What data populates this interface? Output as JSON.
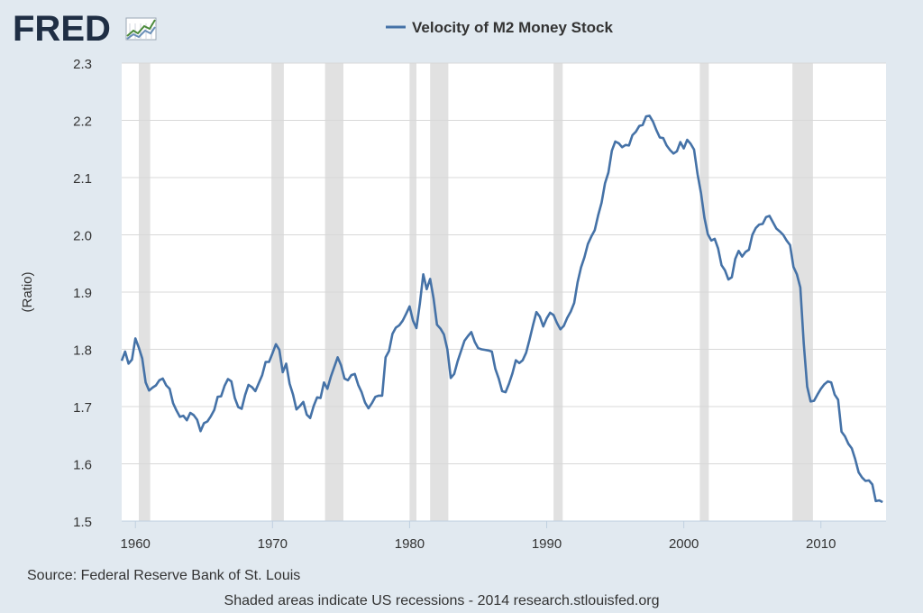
{
  "logo": {
    "text": "FRED",
    "icon": "fred-chart-icon"
  },
  "colors": {
    "background": "#e1e9f0",
    "plot_background": "#ffffff",
    "series": "#4572a7",
    "recession": "#e1e1e1",
    "grid": "#d8d8d8",
    "logo": "#1f2e44"
  },
  "chart_data": {
    "type": "line",
    "title": "Velocity of M2 Money Stock",
    "xlabel": "",
    "ylabel": "(Ratio)",
    "xlim": [
      1959.0,
      2014.75
    ],
    "ylim": [
      1.5,
      2.3
    ],
    "x_ticks": [
      {
        "value": 1960,
        "label": "1960"
      },
      {
        "value": 1970,
        "label": "1970"
      },
      {
        "value": 1980,
        "label": "1980"
      },
      {
        "value": 1990,
        "label": "1990"
      },
      {
        "value": 2000,
        "label": "2000"
      },
      {
        "value": 2010,
        "label": "2010"
      }
    ],
    "y_ticks": [
      {
        "value": 1.5,
        "label": "1.5"
      },
      {
        "value": 1.6,
        "label": "1.6"
      },
      {
        "value": 1.7,
        "label": "1.7"
      },
      {
        "value": 1.8,
        "label": "1.8"
      },
      {
        "value": 1.9,
        "label": "1.9"
      },
      {
        "value": 2.0,
        "label": "2.0"
      },
      {
        "value": 2.1,
        "label": "2.1"
      },
      {
        "value": 2.2,
        "label": "2.2"
      },
      {
        "value": 2.3,
        "label": "2.3"
      }
    ],
    "grid": "horizontal",
    "legend": "top-center",
    "recessions": [
      [
        1960.25,
        1961.08
      ],
      [
        1969.92,
        1970.83
      ],
      [
        1973.83,
        1975.17
      ],
      [
        1980.0,
        1980.5
      ],
      [
        1981.5,
        1982.83
      ],
      [
        1990.5,
        1991.17
      ],
      [
        2001.17,
        2001.83
      ],
      [
        2007.92,
        2009.42
      ]
    ],
    "series": [
      {
        "name": "Velocity of M2 Money Stock",
        "points": [
          [
            1959.0,
            1.78
          ],
          [
            1959.25,
            1.796
          ],
          [
            1959.5,
            1.775
          ],
          [
            1959.75,
            1.782
          ],
          [
            1960.0,
            1.819
          ],
          [
            1960.25,
            1.803
          ],
          [
            1960.5,
            1.784
          ],
          [
            1960.75,
            1.742
          ],
          [
            1961.0,
            1.728
          ],
          [
            1961.25,
            1.733
          ],
          [
            1961.5,
            1.737
          ],
          [
            1961.75,
            1.746
          ],
          [
            1962.0,
            1.749
          ],
          [
            1962.25,
            1.737
          ],
          [
            1962.5,
            1.731
          ],
          [
            1962.75,
            1.706
          ],
          [
            1963.0,
            1.693
          ],
          [
            1963.25,
            1.682
          ],
          [
            1963.5,
            1.684
          ],
          [
            1963.75,
            1.676
          ],
          [
            1964.0,
            1.689
          ],
          [
            1964.25,
            1.685
          ],
          [
            1964.5,
            1.677
          ],
          [
            1964.75,
            1.657
          ],
          [
            1965.0,
            1.671
          ],
          [
            1965.25,
            1.674
          ],
          [
            1965.5,
            1.683
          ],
          [
            1965.75,
            1.694
          ],
          [
            1966.0,
            1.717
          ],
          [
            1966.25,
            1.718
          ],
          [
            1966.5,
            1.736
          ],
          [
            1966.75,
            1.748
          ],
          [
            1967.0,
            1.744
          ],
          [
            1967.25,
            1.715
          ],
          [
            1967.5,
            1.699
          ],
          [
            1967.75,
            1.696
          ],
          [
            1968.0,
            1.72
          ],
          [
            1968.25,
            1.738
          ],
          [
            1968.5,
            1.734
          ],
          [
            1968.75,
            1.727
          ],
          [
            1969.0,
            1.741
          ],
          [
            1969.25,
            1.755
          ],
          [
            1969.5,
            1.778
          ],
          [
            1969.75,
            1.778
          ],
          [
            1970.0,
            1.793
          ],
          [
            1970.25,
            1.809
          ],
          [
            1970.5,
            1.799
          ],
          [
            1970.75,
            1.76
          ],
          [
            1971.0,
            1.775
          ],
          [
            1971.25,
            1.74
          ],
          [
            1971.5,
            1.721
          ],
          [
            1971.75,
            1.695
          ],
          [
            1972.0,
            1.701
          ],
          [
            1972.25,
            1.708
          ],
          [
            1972.5,
            1.686
          ],
          [
            1972.75,
            1.68
          ],
          [
            1973.0,
            1.701
          ],
          [
            1973.25,
            1.716
          ],
          [
            1973.5,
            1.715
          ],
          [
            1973.75,
            1.742
          ],
          [
            1974.0,
            1.731
          ],
          [
            1974.25,
            1.752
          ],
          [
            1974.5,
            1.769
          ],
          [
            1974.75,
            1.786
          ],
          [
            1975.0,
            1.772
          ],
          [
            1975.25,
            1.749
          ],
          [
            1975.5,
            1.746
          ],
          [
            1975.75,
            1.755
          ],
          [
            1976.0,
            1.757
          ],
          [
            1976.25,
            1.738
          ],
          [
            1976.5,
            1.725
          ],
          [
            1976.75,
            1.707
          ],
          [
            1977.0,
            1.697
          ],
          [
            1977.25,
            1.706
          ],
          [
            1977.5,
            1.717
          ],
          [
            1977.75,
            1.719
          ],
          [
            1978.0,
            1.719
          ],
          [
            1978.25,
            1.786
          ],
          [
            1978.5,
            1.797
          ],
          [
            1978.75,
            1.827
          ],
          [
            1979.0,
            1.838
          ],
          [
            1979.25,
            1.842
          ],
          [
            1979.5,
            1.85
          ],
          [
            1979.75,
            1.862
          ],
          [
            1980.0,
            1.875
          ],
          [
            1980.25,
            1.85
          ],
          [
            1980.5,
            1.837
          ],
          [
            1980.75,
            1.88
          ],
          [
            1981.0,
            1.931
          ],
          [
            1981.25,
            1.905
          ],
          [
            1981.5,
            1.923
          ],
          [
            1981.75,
            1.889
          ],
          [
            1982.0,
            1.843
          ],
          [
            1982.25,
            1.836
          ],
          [
            1982.5,
            1.826
          ],
          [
            1982.75,
            1.8
          ],
          [
            1983.0,
            1.75
          ],
          [
            1983.25,
            1.757
          ],
          [
            1983.5,
            1.779
          ],
          [
            1983.75,
            1.797
          ],
          [
            1984.0,
            1.815
          ],
          [
            1984.25,
            1.823
          ],
          [
            1984.5,
            1.83
          ],
          [
            1984.75,
            1.813
          ],
          [
            1985.0,
            1.802
          ],
          [
            1985.25,
            1.8
          ],
          [
            1985.5,
            1.799
          ],
          [
            1985.75,
            1.798
          ],
          [
            1986.0,
            1.796
          ],
          [
            1986.25,
            1.766
          ],
          [
            1986.5,
            1.749
          ],
          [
            1986.75,
            1.727
          ],
          [
            1987.0,
            1.725
          ],
          [
            1987.25,
            1.74
          ],
          [
            1987.5,
            1.758
          ],
          [
            1987.75,
            1.781
          ],
          [
            1988.0,
            1.776
          ],
          [
            1988.25,
            1.781
          ],
          [
            1988.5,
            1.794
          ],
          [
            1988.75,
            1.817
          ],
          [
            1989.0,
            1.842
          ],
          [
            1989.25,
            1.865
          ],
          [
            1989.5,
            1.857
          ],
          [
            1989.75,
            1.84
          ],
          [
            1990.0,
            1.854
          ],
          [
            1990.25,
            1.864
          ],
          [
            1990.5,
            1.86
          ],
          [
            1990.75,
            1.846
          ],
          [
            1991.0,
            1.835
          ],
          [
            1991.25,
            1.841
          ],
          [
            1991.5,
            1.855
          ],
          [
            1991.75,
            1.866
          ],
          [
            1992.0,
            1.881
          ],
          [
            1992.25,
            1.917
          ],
          [
            1992.5,
            1.943
          ],
          [
            1992.75,
            1.961
          ],
          [
            1993.0,
            1.984
          ],
          [
            1993.25,
            1.997
          ],
          [
            1993.5,
            2.008
          ],
          [
            1993.75,
            2.034
          ],
          [
            1994.0,
            2.056
          ],
          [
            1994.25,
            2.09
          ],
          [
            1994.5,
            2.109
          ],
          [
            1994.75,
            2.147
          ],
          [
            1995.0,
            2.163
          ],
          [
            1995.25,
            2.16
          ],
          [
            1995.5,
            2.153
          ],
          [
            1995.75,
            2.157
          ],
          [
            1996.0,
            2.156
          ],
          [
            1996.25,
            2.174
          ],
          [
            1996.5,
            2.18
          ],
          [
            1996.75,
            2.19
          ],
          [
            1997.0,
            2.192
          ],
          [
            1997.25,
            2.207
          ],
          [
            1997.5,
            2.208
          ],
          [
            1997.75,
            2.198
          ],
          [
            1998.0,
            2.183
          ],
          [
            1998.25,
            2.17
          ],
          [
            1998.5,
            2.169
          ],
          [
            1998.75,
            2.156
          ],
          [
            1999.0,
            2.148
          ],
          [
            1999.25,
            2.142
          ],
          [
            1999.5,
            2.146
          ],
          [
            1999.75,
            2.162
          ],
          [
            2000.0,
            2.151
          ],
          [
            2000.25,
            2.166
          ],
          [
            2000.5,
            2.159
          ],
          [
            2000.75,
            2.149
          ],
          [
            2001.0,
            2.106
          ],
          [
            2001.25,
            2.073
          ],
          [
            2001.5,
            2.03
          ],
          [
            2001.75,
            2.001
          ],
          [
            2002.0,
            1.99
          ],
          [
            2002.25,
            1.993
          ],
          [
            2002.5,
            1.976
          ],
          [
            2002.75,
            1.947
          ],
          [
            2003.0,
            1.938
          ],
          [
            2003.25,
            1.922
          ],
          [
            2003.5,
            1.926
          ],
          [
            2003.75,
            1.958
          ],
          [
            2004.0,
            1.972
          ],
          [
            2004.25,
            1.962
          ],
          [
            2004.5,
            1.97
          ],
          [
            2004.75,
            1.974
          ],
          [
            2005.0,
            2.0
          ],
          [
            2005.25,
            2.012
          ],
          [
            2005.5,
            2.018
          ],
          [
            2005.75,
            2.019
          ],
          [
            2006.0,
            2.031
          ],
          [
            2006.25,
            2.033
          ],
          [
            2006.5,
            2.022
          ],
          [
            2006.75,
            2.011
          ],
          [
            2007.0,
            2.006
          ],
          [
            2007.25,
            2.0
          ],
          [
            2007.5,
            1.99
          ],
          [
            2007.75,
            1.982
          ],
          [
            2008.0,
            1.944
          ],
          [
            2008.25,
            1.931
          ],
          [
            2008.5,
            1.908
          ],
          [
            2008.75,
            1.81
          ],
          [
            2009.0,
            1.735
          ],
          [
            2009.25,
            1.709
          ],
          [
            2009.5,
            1.71
          ],
          [
            2009.75,
            1.721
          ],
          [
            2010.0,
            1.731
          ],
          [
            2010.25,
            1.739
          ],
          [
            2010.5,
            1.744
          ],
          [
            2010.75,
            1.742
          ],
          [
            2011.0,
            1.721
          ],
          [
            2011.25,
            1.712
          ],
          [
            2011.5,
            1.656
          ],
          [
            2011.75,
            1.648
          ],
          [
            2012.0,
            1.635
          ],
          [
            2012.25,
            1.627
          ],
          [
            2012.5,
            1.608
          ],
          [
            2012.75,
            1.585
          ],
          [
            2013.0,
            1.576
          ],
          [
            2013.25,
            1.57
          ],
          [
            2013.5,
            1.571
          ],
          [
            2013.75,
            1.564
          ],
          [
            2014.0,
            1.535
          ],
          [
            2014.25,
            1.536
          ],
          [
            2014.5,
            1.533
          ]
        ]
      }
    ]
  },
  "footer": {
    "source": "Source: Federal Reserve Bank of St. Louis",
    "note": "Shaded areas indicate US recessions - 2014 research.stlouisfed.org"
  }
}
